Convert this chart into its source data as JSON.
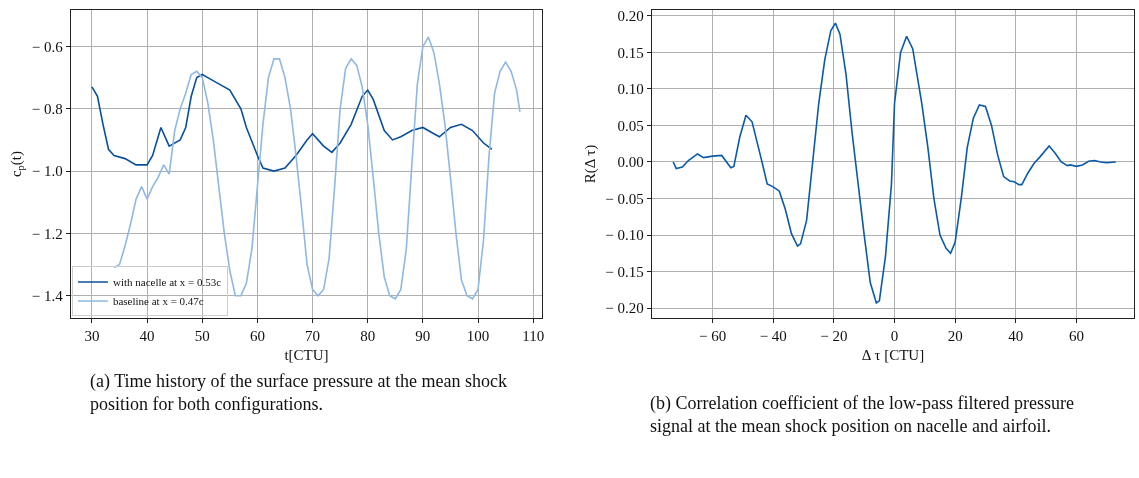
{
  "chart_data": [
    {
      "type": "line",
      "xlabel": "t[CTU]",
      "ylabel": "c$_{p}$(t)",
      "xlim": [
        26.2,
        111.6
      ],
      "ylim": [
        -1.4716,
        -0.483
      ],
      "xticks": [
        30,
        40,
        50,
        60,
        70,
        80,
        90,
        100,
        110
      ],
      "yticks": [
        {
          "value": -0.6,
          "label": "− 0.6"
        },
        {
          "value": -0.8,
          "label": "− 0.8"
        },
        {
          "value": -1.0,
          "label": "− 1.0"
        },
        {
          "value": -1.2,
          "label": "− 1.2"
        },
        {
          "value": -1.4,
          "label": "− 1.4"
        }
      ],
      "grid": true,
      "legend": "bottom left",
      "marker": "none",
      "line_style": "solid",
      "annotations": [
        "(a) Time history of the surface pressure at the mean shock position for both configurations."
      ],
      "series": [
        {
          "name": "with nacelle at x = 0.53c",
          "color": "#0a4f9c",
          "x": [
            30,
            31,
            32,
            33,
            34,
            36,
            38,
            40,
            41,
            42.5,
            43.5,
            44,
            46,
            47,
            48,
            49,
            50,
            51,
            53,
            55,
            57,
            58,
            60,
            61,
            63,
            65,
            67,
            69,
            70,
            72,
            73.5,
            75,
            77,
            79,
            80,
            81,
            83,
            84.5,
            86,
            88,
            90,
            92,
            93,
            95,
            97,
            99,
            101,
            102.5
          ],
          "values": [
            -0.73,
            -0.76,
            -0.85,
            -0.93,
            -0.95,
            -0.96,
            -0.98,
            -0.98,
            -0.95,
            -0.86,
            -0.9,
            -0.92,
            -0.9,
            -0.86,
            -0.76,
            -0.7,
            -0.69,
            -0.7,
            -0.72,
            -0.74,
            -0.8,
            -0.86,
            -0.95,
            -0.99,
            -1.0,
            -0.99,
            -0.95,
            -0.9,
            -0.88,
            -0.92,
            -0.94,
            -0.91,
            -0.85,
            -0.76,
            -0.74,
            -0.77,
            -0.87,
            -0.9,
            -0.89,
            -0.87,
            -0.86,
            -0.88,
            -0.89,
            -0.86,
            -0.85,
            -0.87,
            -0.91,
            -0.93
          ]
        },
        {
          "name": "baseline at x = 0.47c",
          "color": "#8fb8e3",
          "x": [
            34,
            35,
            36,
            37,
            38,
            39,
            40,
            41,
            42,
            43,
            44,
            45,
            46,
            47,
            48,
            49,
            50,
            51,
            52,
            53,
            54,
            55,
            56,
            57,
            58,
            59,
            60,
            61,
            62,
            63,
            64,
            65,
            66,
            67,
            68,
            69,
            70,
            71,
            72,
            73,
            74,
            75,
            76,
            77,
            78,
            79,
            80,
            81,
            82,
            83,
            84,
            85,
            86,
            87,
            88,
            89,
            90,
            91,
            92,
            93,
            94,
            95,
            96,
            97,
            98,
            99,
            100,
            101,
            102,
            103,
            104,
            105,
            106,
            107,
            107.6
          ],
          "values": [
            -1.31,
            -1.3,
            -1.24,
            -1.17,
            -1.09,
            -1.05,
            -1.09,
            -1.05,
            -1.02,
            -0.98,
            -1.01,
            -0.87,
            -0.8,
            -0.75,
            -0.69,
            -0.68,
            -0.7,
            -0.78,
            -0.9,
            -1.05,
            -1.2,
            -1.32,
            -1.4,
            -1.4,
            -1.36,
            -1.25,
            -1.05,
            -0.85,
            -0.7,
            -0.64,
            -0.64,
            -0.7,
            -0.8,
            -0.95,
            -1.12,
            -1.3,
            -1.38,
            -1.4,
            -1.38,
            -1.28,
            -1.05,
            -0.8,
            -0.67,
            -0.64,
            -0.66,
            -0.73,
            -0.85,
            -1.02,
            -1.2,
            -1.34,
            -1.4,
            -1.41,
            -1.38,
            -1.25,
            -0.98,
            -0.72,
            -0.6,
            -0.57,
            -0.62,
            -0.72,
            -0.85,
            -1.02,
            -1.2,
            -1.35,
            -1.4,
            -1.41,
            -1.38,
            -1.22,
            -0.95,
            -0.75,
            -0.68,
            -0.65,
            -0.68,
            -0.74,
            -0.81
          ]
        }
      ]
    },
    {
      "type": "line",
      "xlabel": "Δ τ [CTU]",
      "ylabel": "R(Δ τ)",
      "xlim": [
        -80,
        79
      ],
      "ylim": [
        -0.2135,
        0.208
      ],
      "xticks": [
        {
          "value": -60,
          "label": "− 60"
        },
        {
          "value": -40,
          "label": "− 40"
        },
        {
          "value": -20,
          "label": "− 20"
        },
        0,
        20,
        40,
        60
      ],
      "yticks": [
        {
          "value": -0.2,
          "label": "− 0.20"
        },
        {
          "value": -0.15,
          "label": "− 0.15"
        },
        {
          "value": -0.1,
          "label": "− 0.10"
        },
        {
          "value": -0.05,
          "label": "− 0.05"
        },
        {
          "value": 0,
          "label": "0.00"
        },
        {
          "value": 0.05,
          "label": "0.05"
        },
        {
          "value": 0.1,
          "label": "0.10"
        },
        {
          "value": 0.15,
          "label": "0.15"
        },
        {
          "value": 0.2,
          "label": "0.20"
        }
      ],
      "grid": true,
      "marker": "none",
      "line_style": "solid",
      "annotations": [
        "(b) Correlation coefficient of the low-pass filtered pressure signal at the mean shock position on nacelle and airfoil."
      ],
      "series": [
        {
          "color": "#0a5aa8",
          "x": [
            -73,
            -72,
            -70,
            -68,
            -65,
            -63,
            -60,
            -57,
            -54,
            -53,
            -51,
            -49,
            -47,
            -44,
            -42,
            -40,
            -38,
            -36,
            -34,
            -32,
            -31,
            -29,
            -27,
            -25,
            -23,
            -21,
            -19.5,
            -18,
            -16,
            -14,
            -12,
            -10,
            -8,
            -6,
            -5,
            -3,
            -1,
            0,
            2,
            4,
            6,
            9,
            11,
            13,
            15,
            17,
            18.5,
            20,
            22,
            24,
            26,
            28,
            30,
            32,
            34,
            36,
            38,
            39.5,
            41,
            42,
            44,
            46,
            48,
            51,
            53,
            55,
            57,
            58,
            60,
            62,
            64,
            66,
            68,
            70,
            73
          ],
          "values": [
            0,
            -0.009,
            -0.007,
            0.002,
            0.011,
            0.006,
            0.008,
            0.009,
            -0.008,
            -0.006,
            0.035,
            0.064,
            0.055,
            0.005,
            -0.03,
            -0.034,
            -0.04,
            -0.065,
            -0.098,
            -0.115,
            -0.112,
            -0.08,
            0,
            0.08,
            0.14,
            0.18,
            0.19,
            0.175,
            0.12,
            0.04,
            -0.03,
            -0.1,
            -0.165,
            -0.193,
            -0.19,
            -0.13,
            -0.03,
            0.08,
            0.15,
            0.172,
            0.155,
            0.08,
            0.02,
            -0.05,
            -0.1,
            -0.118,
            -0.125,
            -0.11,
            -0.05,
            0.02,
            0.06,
            0.078,
            0.076,
            0.05,
            0.01,
            -0.02,
            -0.026,
            -0.027,
            -0.031,
            -0.031,
            -0.015,
            -0.002,
            0.007,
            0.022,
            0.012,
            0,
            -0.005,
            -0.004,
            -0.006,
            -0.004,
            0.001,
            0.002,
            0,
            -0.001,
            0
          ]
        }
      ]
    }
  ]
}
